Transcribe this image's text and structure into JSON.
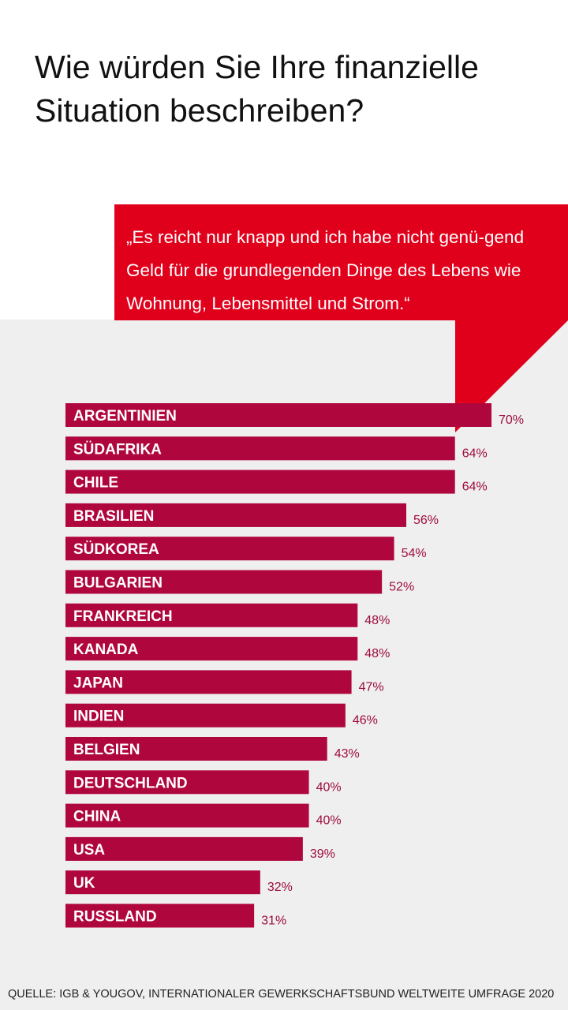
{
  "title": "Wie würden Sie Ihre finanzielle Situation beschreiben?",
  "quote": "„Es reicht nur knapp und ich habe nicht genü-gend Geld für die grundlegenden Dinge des Lebens wie Wohnung, Lebensmittel und Strom.“",
  "source": "QUELLE: IGB & YOUGOV, INTERNATIONALER GEWERKSCHAFTSBUND WELTWEITE UMFRAGE 2020",
  "colors": {
    "bar": "#b0063e",
    "value_text": "#9e0c3c",
    "bubble": "#e0001b",
    "panel": "#efefef"
  },
  "chart_data": {
    "type": "bar",
    "orientation": "horizontal",
    "unit": "%",
    "categories": [
      "ARGENTINIEN",
      "SÜDAFRIKA",
      "CHILE",
      "BRASILIEN",
      "SÜDKOREA",
      "BULGARIEN",
      "FRANKREICH",
      "KANADA",
      "JAPAN",
      "INDIEN",
      "BELGIEN",
      "DEUTSCHLAND",
      "CHINA",
      "USA",
      "UK",
      "RUSSLAND"
    ],
    "values": [
      70,
      64,
      64,
      56,
      54,
      52,
      48,
      48,
      47,
      46,
      43,
      40,
      40,
      39,
      32,
      31
    ],
    "xlim": [
      0,
      70
    ],
    "grid": false,
    "legend": "none"
  }
}
